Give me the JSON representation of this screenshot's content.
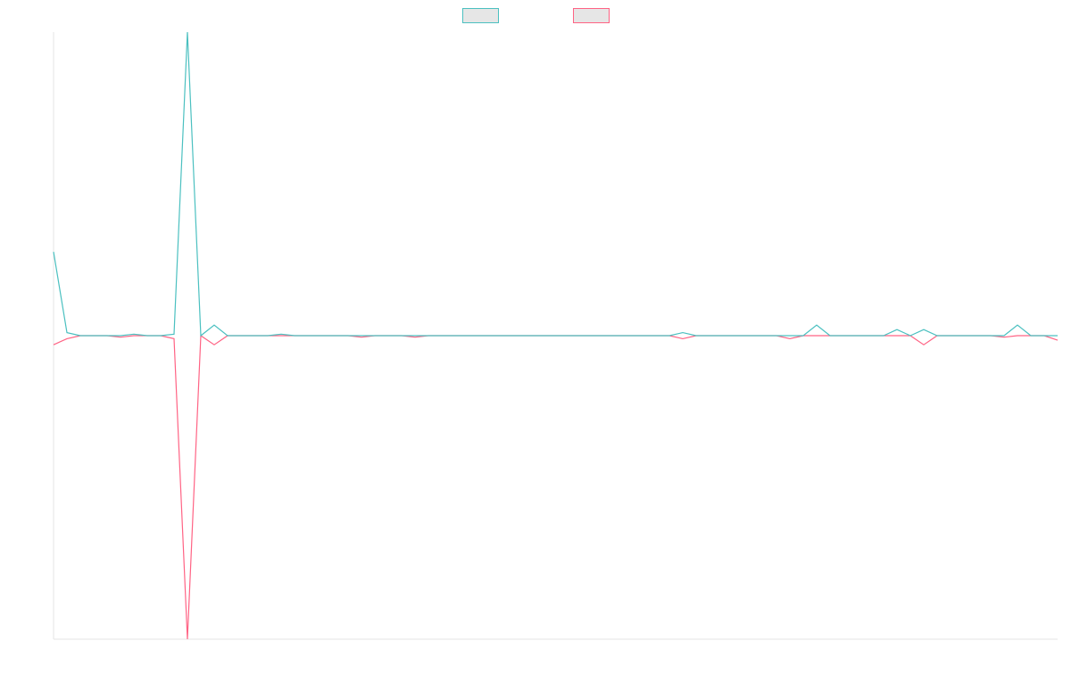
{
  "chart_data": {
    "type": "line",
    "series": [
      {
        "color": "#4bc0c0",
        "values": [
          0.276,
          0.01,
          0,
          0,
          0,
          0,
          0.005,
          0,
          0,
          0.005,
          1,
          0,
          0.035,
          0,
          0,
          0,
          0,
          0.005,
          0,
          0,
          0,
          0,
          0,
          0,
          0,
          0,
          0,
          0,
          0,
          0,
          0,
          0,
          0,
          0,
          0,
          0,
          0,
          0,
          0,
          0,
          0,
          0,
          0,
          0,
          0,
          0,
          0,
          0.01,
          0,
          0,
          0,
          0,
          0,
          0,
          0,
          0,
          0,
          0.035,
          0,
          0,
          0,
          0,
          0,
          0.02,
          0,
          0.02,
          0,
          0,
          0,
          0,
          0,
          0,
          0.035,
          0,
          0,
          0
        ]
      },
      {
        "color": "#ff6384",
        "values": [
          -0.03,
          -0.01,
          0,
          0,
          0,
          -0.005,
          0,
          0,
          0,
          -0.01,
          -1,
          0,
          -0.03,
          0,
          0,
          0,
          0,
          0,
          0,
          0,
          0,
          0,
          0,
          -0.005,
          0,
          0,
          0,
          -0.005,
          0,
          0,
          0,
          0,
          0,
          0,
          0,
          0,
          0,
          0,
          0,
          0,
          0,
          0,
          0,
          0,
          0,
          0,
          0,
          -0.01,
          0,
          0,
          0,
          0,
          0,
          0,
          0,
          -0.01,
          0,
          0,
          0,
          0,
          0,
          0,
          0,
          0,
          0,
          -0.03,
          0,
          0,
          0,
          0,
          0,
          -0.005,
          0,
          0,
          0,
          -0.015
        ]
      }
    ],
    "ylim": [
      -1,
      1
    ],
    "legend": "top"
  }
}
